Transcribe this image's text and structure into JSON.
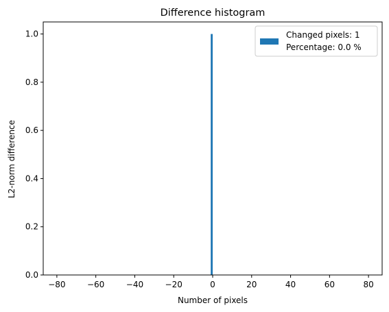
{
  "chart_data": {
    "type": "bar",
    "title": "Difference histogram",
    "xlabel": "Number of pixels",
    "ylabel": "L2-norm difference",
    "xlim": [
      -87,
      87
    ],
    "ylim": [
      0,
      1.05
    ],
    "xticks": [
      -80,
      -60,
      -40,
      -20,
      0,
      20,
      40,
      60,
      80
    ],
    "yticks": [
      0.0,
      0.2,
      0.4,
      0.6,
      0.8,
      1.0
    ],
    "xtick_labels": [
      "−80",
      "−60",
      "−40",
      "−20",
      "0",
      "20",
      "40",
      "60",
      "80"
    ],
    "ytick_labels": [
      "0.0",
      "0.2",
      "0.4",
      "0.6",
      "0.8",
      "1.0"
    ],
    "bars": [
      {
        "x": -1,
        "width": 1,
        "value": 1.0
      }
    ],
    "color": "#1f77b4",
    "grid": false,
    "legend": {
      "placement": "top-right",
      "lines": [
        "Changed pixels: 1",
        "Percentage: 0.0 %"
      ]
    }
  }
}
